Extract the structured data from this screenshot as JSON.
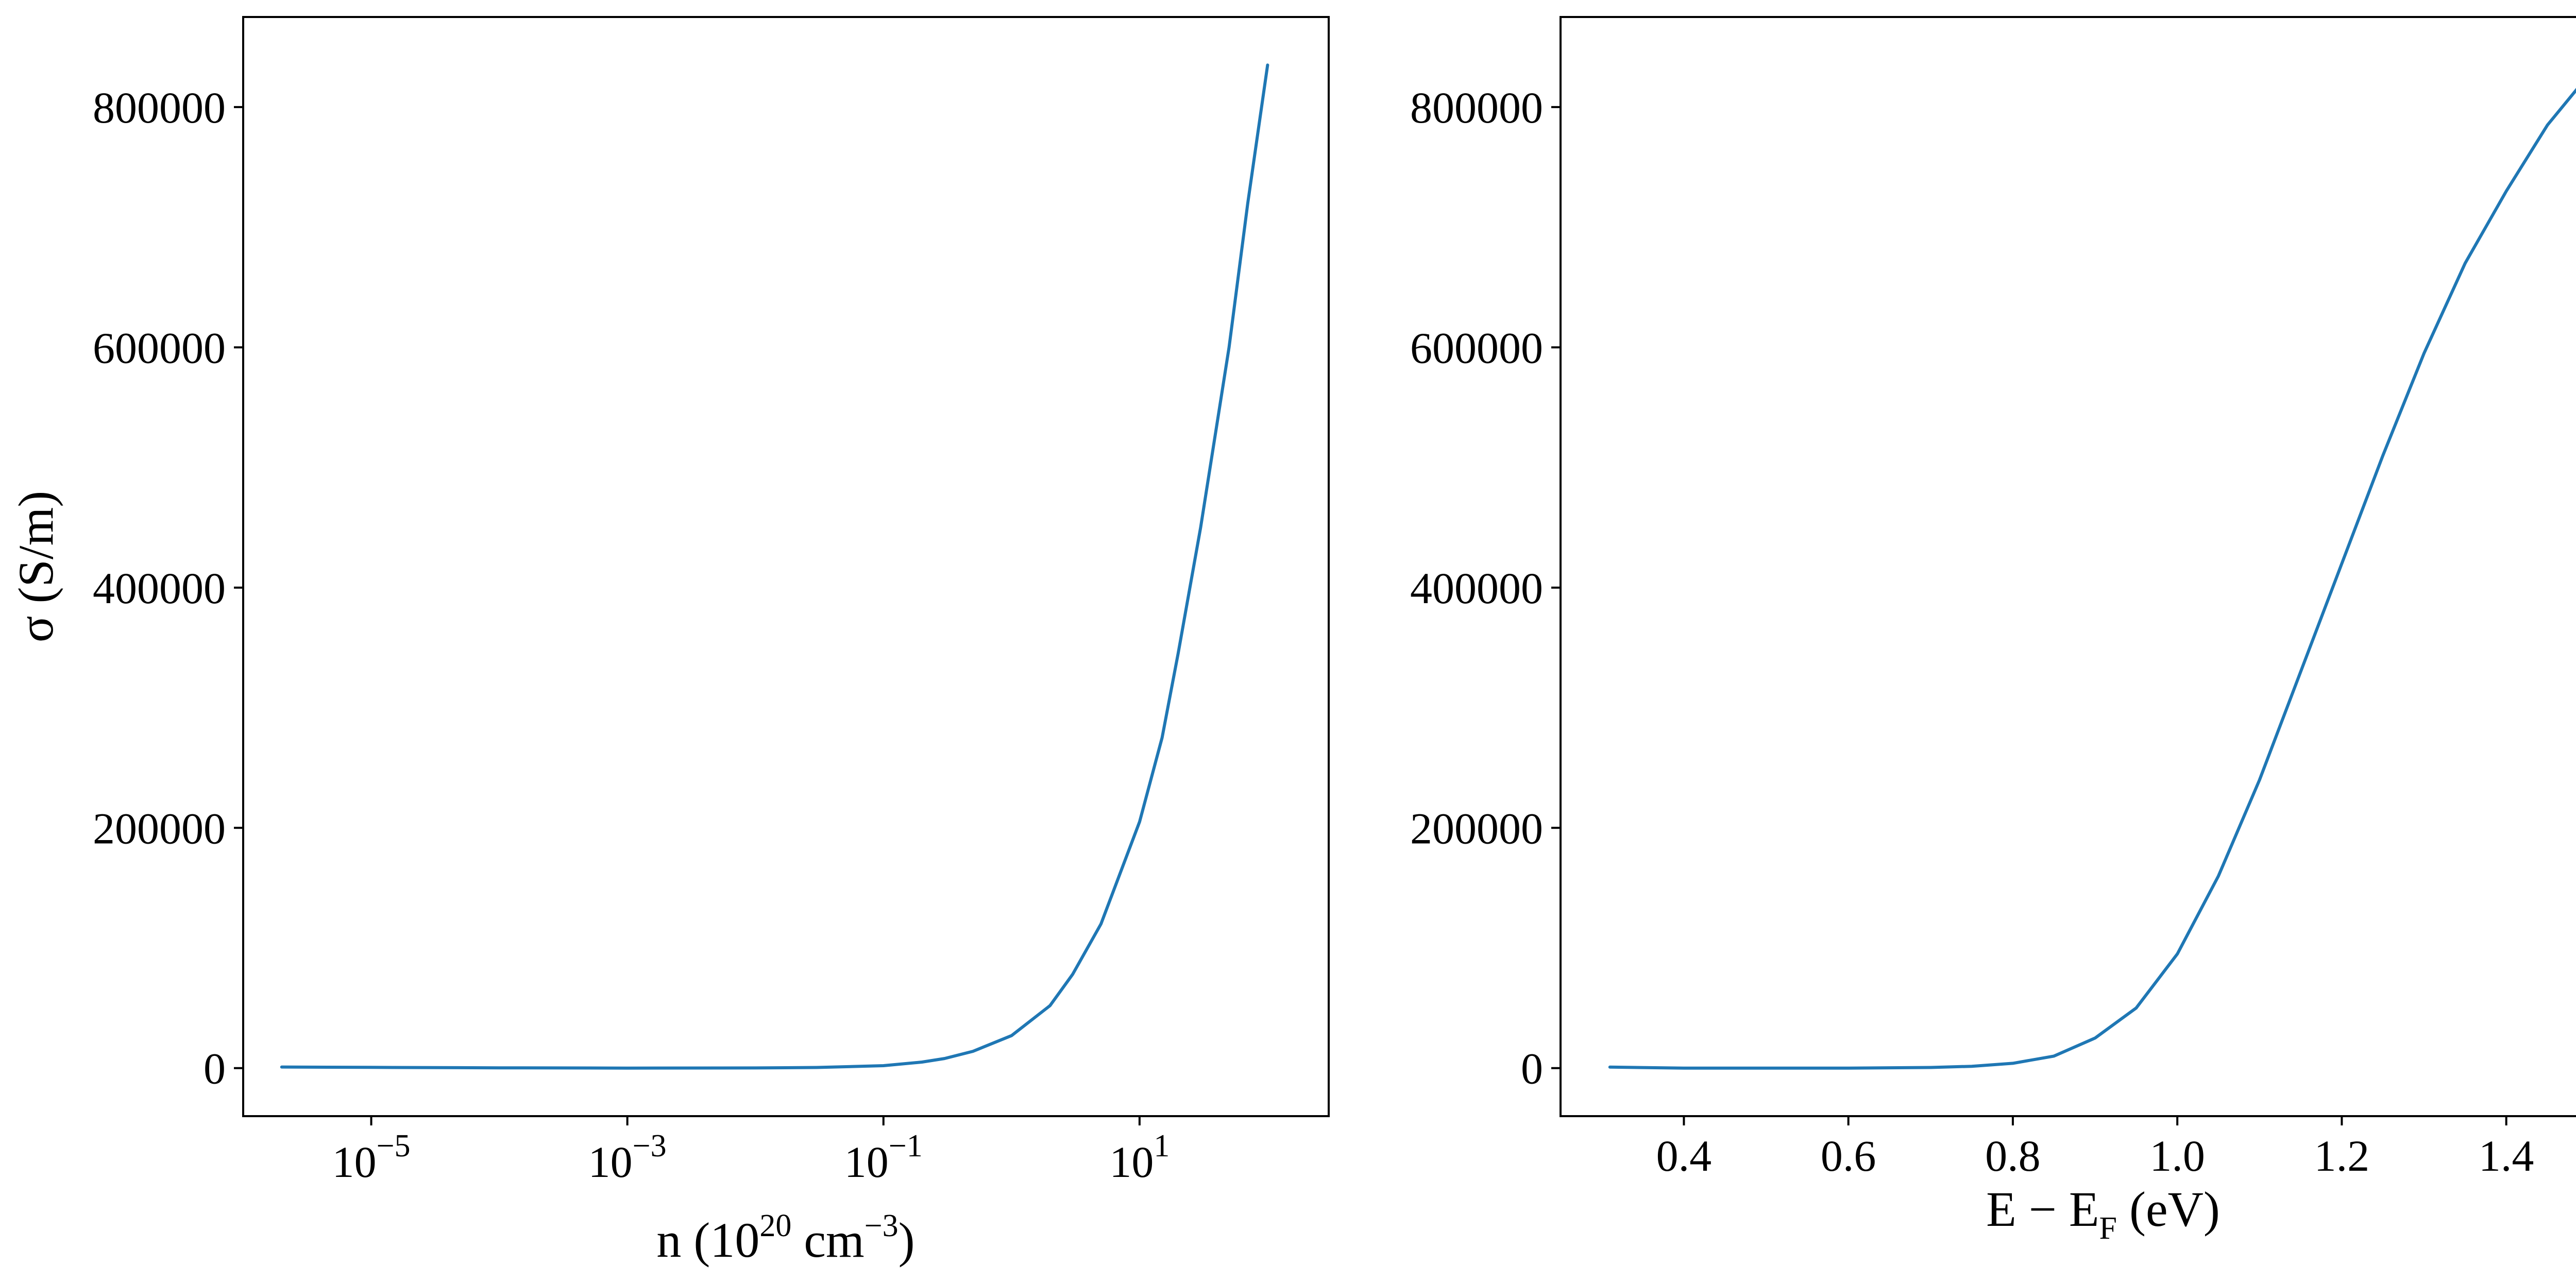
{
  "figure": {
    "background": "#ffffff"
  },
  "chart_data": [
    {
      "type": "line",
      "xscale": "log",
      "xlim": [
        1e-06,
        300
      ],
      "ylim": [
        -40000,
        875000
      ],
      "xlabel": {
        "main": "n (10",
        "sup1": "20",
        "mid": " cm",
        "sup2": "−3",
        "end": ")"
      },
      "ylabel": "σ (S/m)",
      "x_ticks": [
        {
          "value": 1e-05,
          "base": "10",
          "exp": "−5"
        },
        {
          "value": 0.001,
          "base": "10",
          "exp": "−3"
        },
        {
          "value": 0.1,
          "base": "10",
          "exp": "−1"
        },
        {
          "value": 10,
          "base": "10",
          "exp": "1"
        }
      ],
      "y_ticks": [
        {
          "value": 0,
          "label": "0"
        },
        {
          "value": 200000,
          "label": "200000"
        },
        {
          "value": 400000,
          "label": "400000"
        },
        {
          "value": 600000,
          "label": "600000"
        },
        {
          "value": 800000,
          "label": "800000"
        }
      ],
      "series": [
        {
          "color": "#1f77b4",
          "x": [
            2e-06,
            1e-05,
            0.0001,
            0.001,
            0.01,
            0.03,
            0.1,
            0.2,
            0.3,
            0.5,
            1,
            2,
            3,
            5,
            10,
            15,
            20,
            30,
            50,
            70,
            100
          ],
          "y": [
            900,
            600,
            200,
            0,
            150,
            500,
            2000,
            5000,
            8000,
            14000,
            27000,
            52000,
            78000,
            120000,
            205000,
            275000,
            345000,
            450000,
            600000,
            720000,
            835000
          ]
        }
      ]
    },
    {
      "type": "line",
      "xscale": "linear",
      "xlim": [
        0.25,
        1.57
      ],
      "ylim": [
        -40000,
        875000
      ],
      "xlabel": {
        "main": "E − E",
        "sub": "F",
        "end": " (eV)"
      },
      "ylabel": "",
      "x_ticks": [
        {
          "value": 0.4,
          "label": "0.4"
        },
        {
          "value": 0.6,
          "label": "0.6"
        },
        {
          "value": 0.8,
          "label": "0.8"
        },
        {
          "value": 1.0,
          "label": "1.0"
        },
        {
          "value": 1.2,
          "label": "1.2"
        },
        {
          "value": 1.4,
          "label": "1.4"
        }
      ],
      "y_ticks": [
        {
          "value": 0,
          "label": "0"
        },
        {
          "value": 200000,
          "label": "200000"
        },
        {
          "value": 400000,
          "label": "400000"
        },
        {
          "value": 600000,
          "label": "600000"
        },
        {
          "value": 800000,
          "label": "800000"
        }
      ],
      "series": [
        {
          "color": "#1f77b4",
          "x": [
            0.31,
            0.4,
            0.5,
            0.6,
            0.7,
            0.75,
            0.8,
            0.85,
            0.9,
            0.95,
            1.0,
            1.05,
            1.1,
            1.15,
            1.2,
            1.25,
            1.3,
            1.35,
            1.4,
            1.45,
            1.51
          ],
          "y": [
            800,
            0,
            0,
            0,
            500,
            1500,
            4000,
            10000,
            25000,
            50000,
            95000,
            160000,
            240000,
            330000,
            420000,
            510000,
            595000,
            670000,
            730000,
            785000,
            835000
          ]
        }
      ]
    }
  ]
}
